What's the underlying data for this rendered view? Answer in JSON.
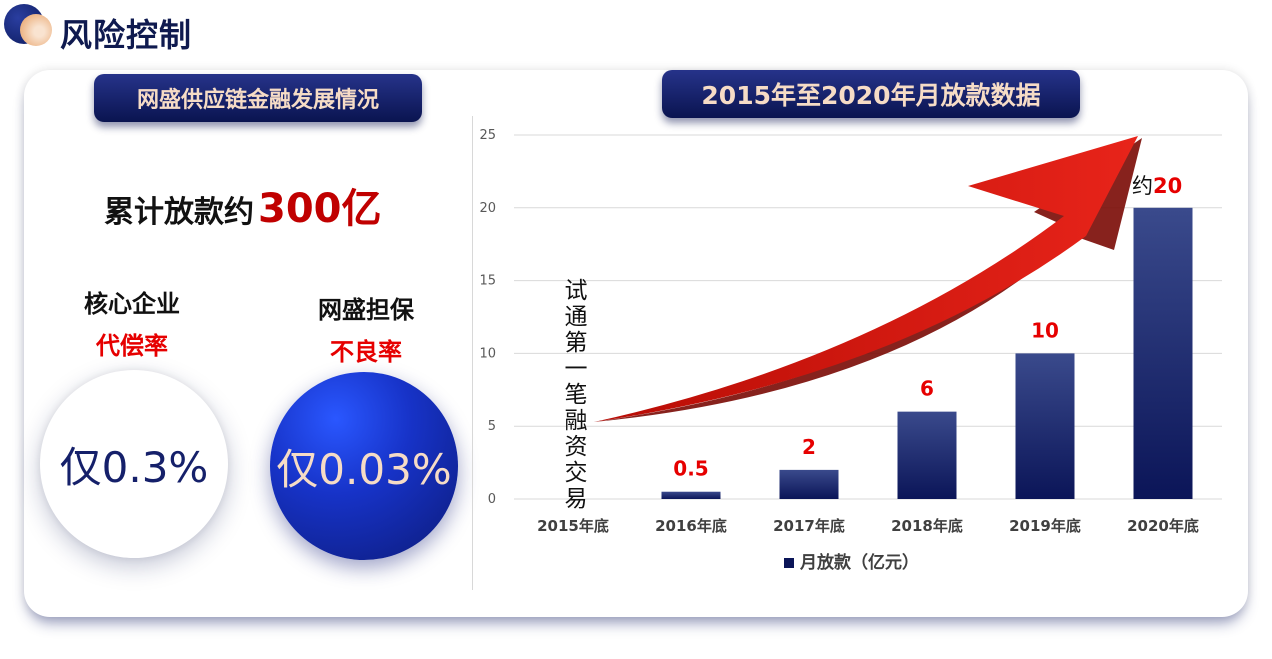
{
  "header": {
    "title": "风险控制"
  },
  "left": {
    "pill_title": "网盛供应链金融发展情况",
    "total_prefix": "累计放款约",
    "total_value": "300亿",
    "stats": [
      {
        "label": "核心企业",
        "sub": "代偿率",
        "value": "仅0.3%"
      },
      {
        "label": "网盛担保",
        "sub": "不良率",
        "value": "仅0.03%"
      }
    ]
  },
  "right": {
    "pill_title": "2015年至2020年月放款数据",
    "annotation_vertical": "试通第一笔融资交易",
    "approx_prefix": "约",
    "approx_value": "20"
  },
  "colors": {
    "bar_top": "#3a4a8c",
    "bar_bottom": "#0b1558",
    "accent_red": "#e60000",
    "arrow_red": "#dd1a0e"
  },
  "chart_data": {
    "type": "bar",
    "categories": [
      "2015年底",
      "2016年底",
      "2017年底",
      "2018年底",
      "2019年底",
      "2020年底"
    ],
    "series": [
      {
        "name": "月放款（亿元）",
        "values": [
          0,
          0.5,
          2,
          6,
          10,
          20
        ]
      }
    ],
    "data_labels": [
      "",
      "0.5",
      "2",
      "6",
      "10",
      ""
    ],
    "ylim": [
      0,
      25
    ],
    "yticks": [
      0,
      5,
      10,
      15,
      20,
      25
    ],
    "grid": true,
    "legend_position": "bottom",
    "legend": [
      "月放款（亿元）"
    ]
  }
}
